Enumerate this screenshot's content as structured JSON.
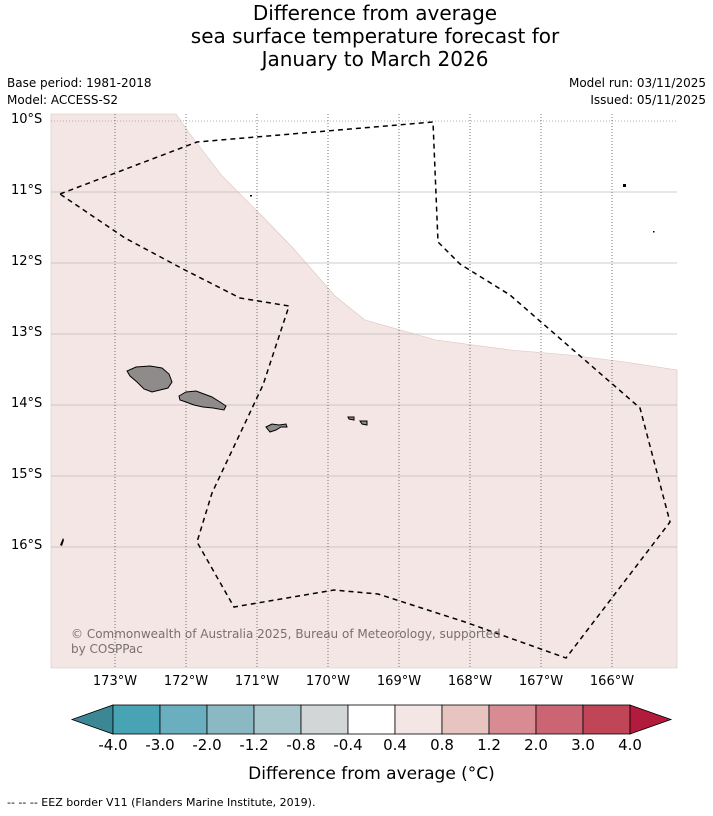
{
  "title": {
    "line1": "Difference from average",
    "line2": "sea surface temperature forecast for",
    "line3": "January to March 2026"
  },
  "meta": {
    "base_period": "Base period: 1981-2018",
    "model": "Model: ACCESS-S2",
    "model_run": "Model run: 03/11/2025",
    "issued": "Issued: 05/11/2025"
  },
  "map": {
    "lat_labels": [
      "10°S",
      "11°S",
      "12°S",
      "13°S",
      "14°S",
      "15°S",
      "16°S"
    ],
    "lon_labels": [
      "173°W",
      "172°W",
      "171°W",
      "170°W",
      "169°W",
      "168°W",
      "167°W",
      "166°W"
    ],
    "copyright_line1": "© Commonwealth of Australia 2025, Bureau of Meteorology, supported",
    "copyright_line2": "by COSPPac",
    "anomaly_fill_color": "#f4e6e4",
    "land_color": "#8f8b8b"
  },
  "colorbar": {
    "ticks": [
      "-4.0",
      "-3.0",
      "-2.0",
      "-1.2",
      "-0.8",
      "-0.4",
      "0.4",
      "0.8",
      "1.2",
      "2.0",
      "3.0",
      "4.0"
    ],
    "colors": [
      "#3b8796",
      "#48a3b5",
      "#6aafbf",
      "#8ab8c3",
      "#a8c7cc",
      "#d2d6d6",
      "#ffffff",
      "#f4e6e4",
      "#e8c4c1",
      "#d98b93",
      "#cc6573",
      "#c04556",
      "#b31b3c"
    ],
    "title": "Difference from average (°C)"
  },
  "legend": {
    "footer": "--  --  -- EEZ border V11 (Flanders Marine Institute, 2019)."
  }
}
